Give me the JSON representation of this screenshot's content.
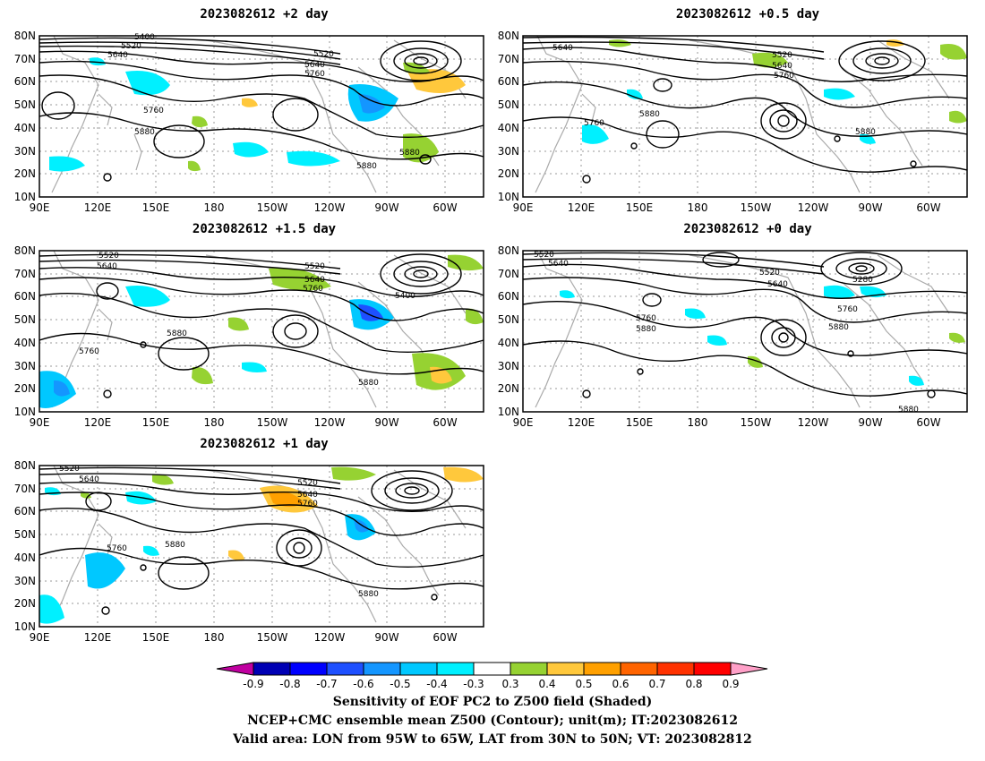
{
  "panels": [
    {
      "id": "p1",
      "title": "2023082612 +2 day"
    },
    {
      "id": "p2",
      "title": "2023082612 +0.5 day"
    },
    {
      "id": "p3",
      "title": "2023082612 +1.5 day"
    },
    {
      "id": "p4",
      "title": "2023082612 +0 day"
    },
    {
      "id": "p5",
      "title": "2023082612 +1 day"
    }
  ],
  "axes": {
    "lat_labels": [
      "80N",
      "70N",
      "60N",
      "50N",
      "40N",
      "30N",
      "20N",
      "10N"
    ],
    "lon_labels": [
      "90E",
      "120E",
      "150E",
      "180",
      "150W",
      "120W",
      "90W",
      "60W"
    ]
  },
  "contour_labels": {
    "p1": [
      "5400",
      "5520",
      "5640",
      "5520",
      "5640",
      "5760",
      "5760",
      "5880",
      "5880",
      "5880"
    ],
    "p2": [
      "5640",
      "5520",
      "5640",
      "5760",
      "5760",
      "5880",
      "5880"
    ],
    "p3": [
      "5520",
      "5640",
      "5520",
      "5640",
      "5760",
      "5400",
      "5760",
      "5880",
      "5880"
    ],
    "p4": [
      "5520",
      "5640",
      "5520",
      "5640",
      "5280",
      "5760",
      "5880",
      "5760",
      "5880",
      "5880"
    ],
    "p5": [
      "5520",
      "5640",
      "5520",
      "5640",
      "5760",
      "5760",
      "5880",
      "5880"
    ]
  },
  "colorbar": {
    "ticks": [
      "-0.9",
      "-0.8",
      "-0.7",
      "-0.6",
      "-0.5",
      "-0.4",
      "-0.3",
      "0.3",
      "0.4",
      "0.5",
      "0.6",
      "0.7",
      "0.8",
      "0.9"
    ],
    "colors": [
      "#c000a0",
      "#0000b4",
      "#0000ff",
      "#1e50ff",
      "#1496ff",
      "#00c8ff",
      "#00f0ff",
      "#ffffff",
      "#96d232",
      "#ffc83c",
      "#ffa000",
      "#ff6400",
      "#ff3200",
      "#ff0000",
      "#ffa0c8"
    ]
  },
  "caption": {
    "line1": "Sensitivity of EOF PC2 to Z500 field (Shaded)",
    "line2": "NCEP+CMC ensemble mean Z500 (Contour); unit(m); IT:2023082612",
    "line3": "Valid area: LON from 95W to 65W, LAT from 30N to 50N; VT: 2023082812"
  }
}
